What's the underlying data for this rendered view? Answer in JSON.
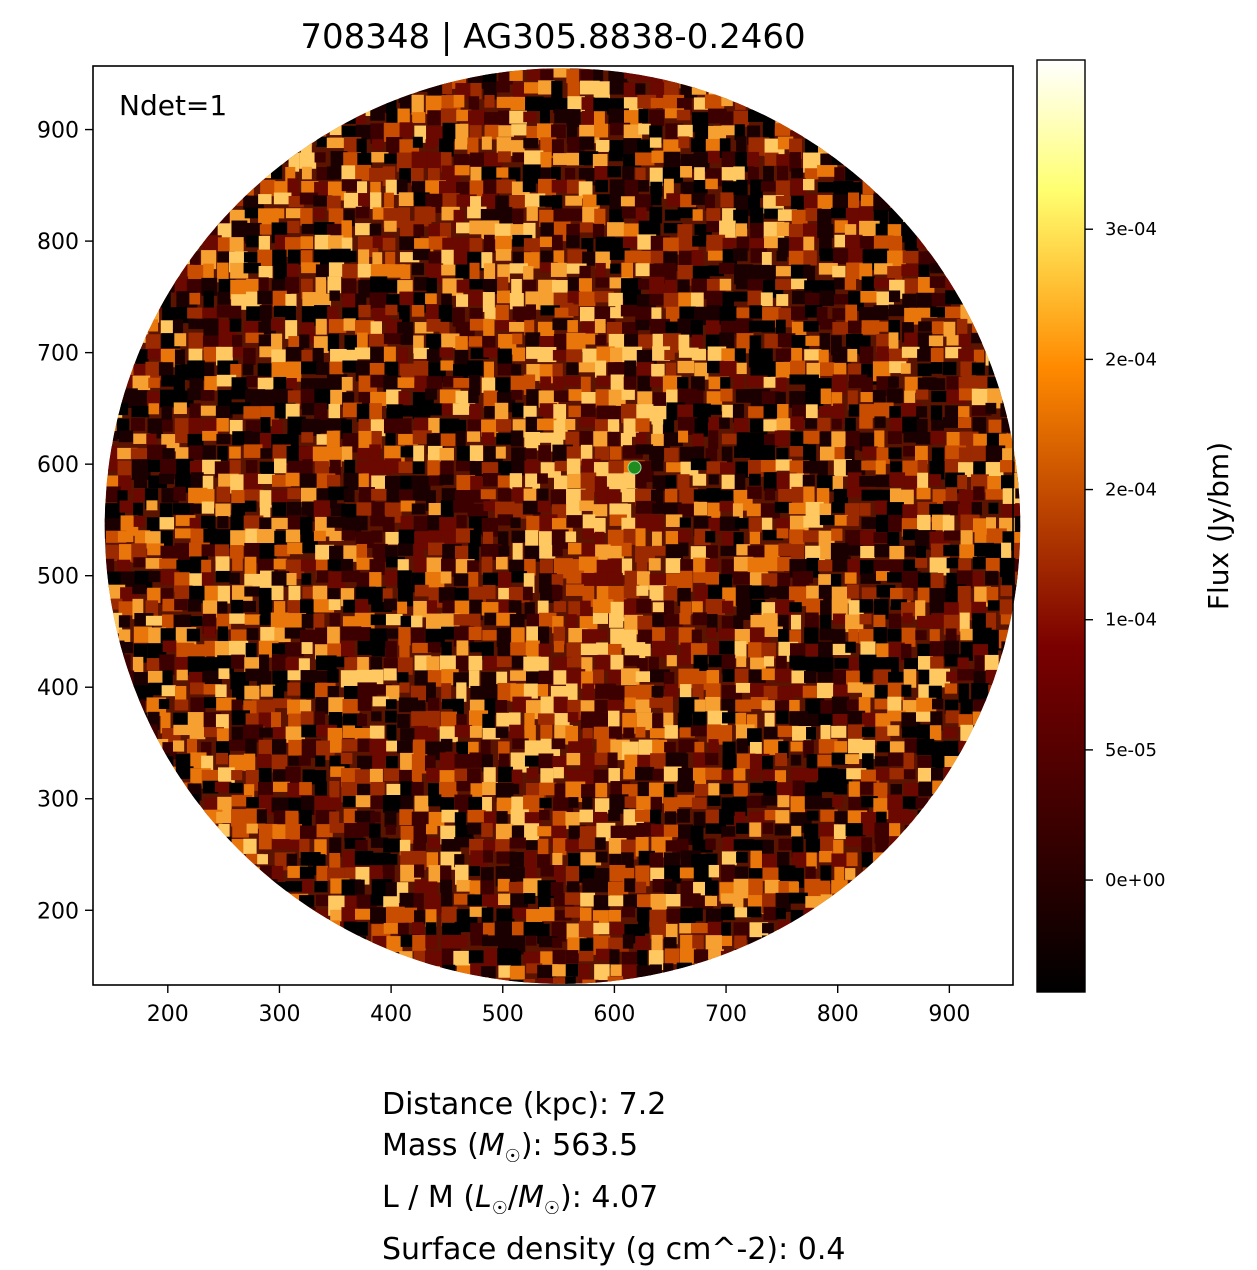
{
  "chart_data": {
    "type": "heatmap",
    "title": "708348 | AG305.8838-0.2460",
    "annotation": "Ndet=1",
    "xlim": [
      133,
      957
    ],
    "ylim": [
      133,
      957
    ],
    "xticks": [
      200,
      300,
      400,
      500,
      600,
      700,
      800,
      900
    ],
    "yticks": [
      200,
      300,
      400,
      500,
      600,
      700,
      800,
      900
    ],
    "image_extent_circle": {
      "center": [
        553.5,
        544.5
      ],
      "radius": 410
    },
    "detection_marker": {
      "x": 618,
      "y": 597,
      "color": "#1e8c1e"
    },
    "colormap": "afmhot",
    "colorbar": {
      "label": "Flux (Jy/bm)",
      "range": [
        -4.3e-05,
        0.000315
      ],
      "ticks": [
        {
          "value": 0.0,
          "label": "0e+00"
        },
        {
          "value": 5e-05,
          "label": "5e-05"
        },
        {
          "value": 0.0001,
          "label": "1e-04"
        },
        {
          "value": 0.00015,
          "label": "2e-04"
        },
        {
          "value": 0.0002,
          "label": "2e-04"
        },
        {
          "value": 0.00025,
          "label": "3e-04"
        }
      ]
    }
  },
  "info": {
    "distance": "Distance (kpc): 7.2",
    "mass_prefix": "Mass (",
    "mass_sym": "M",
    "mass_suffix": "): 563.5",
    "lm_prefix": "L / M (",
    "lm_sym_l": "L",
    "lm_sym_m": "M",
    "lm_suffix": "): 4.07",
    "surface_density": "Surface density (g cm^-2): 0.4"
  },
  "sun_symbol": "☉"
}
